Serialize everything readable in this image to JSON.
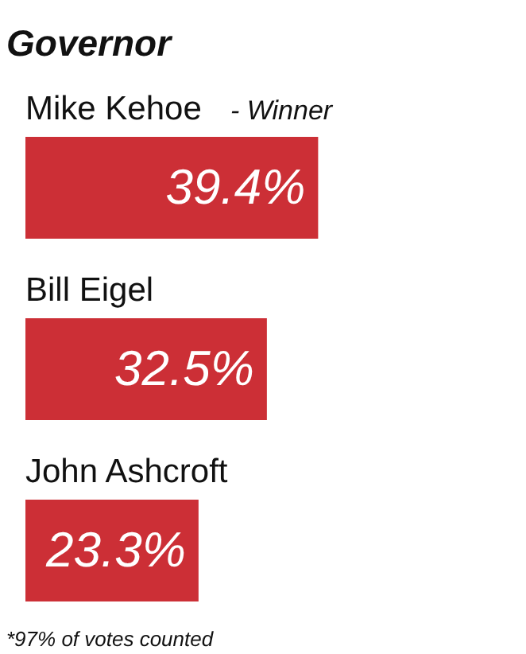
{
  "chart_data": {
    "type": "bar",
    "orientation": "horizontal",
    "title": "Governor",
    "categories": [
      "Mike Kehoe",
      "Bill Eigel",
      "John Ashcroft"
    ],
    "values": [
      39.4,
      32.5,
      23.3
    ],
    "color": "#cc2f36",
    "value_labels": [
      "39.4%",
      "32.5%",
      "23.3%"
    ],
    "tick_labels": false,
    "annotations": [
      "- Winner",
      "*97% of votes counted"
    ]
  }
}
